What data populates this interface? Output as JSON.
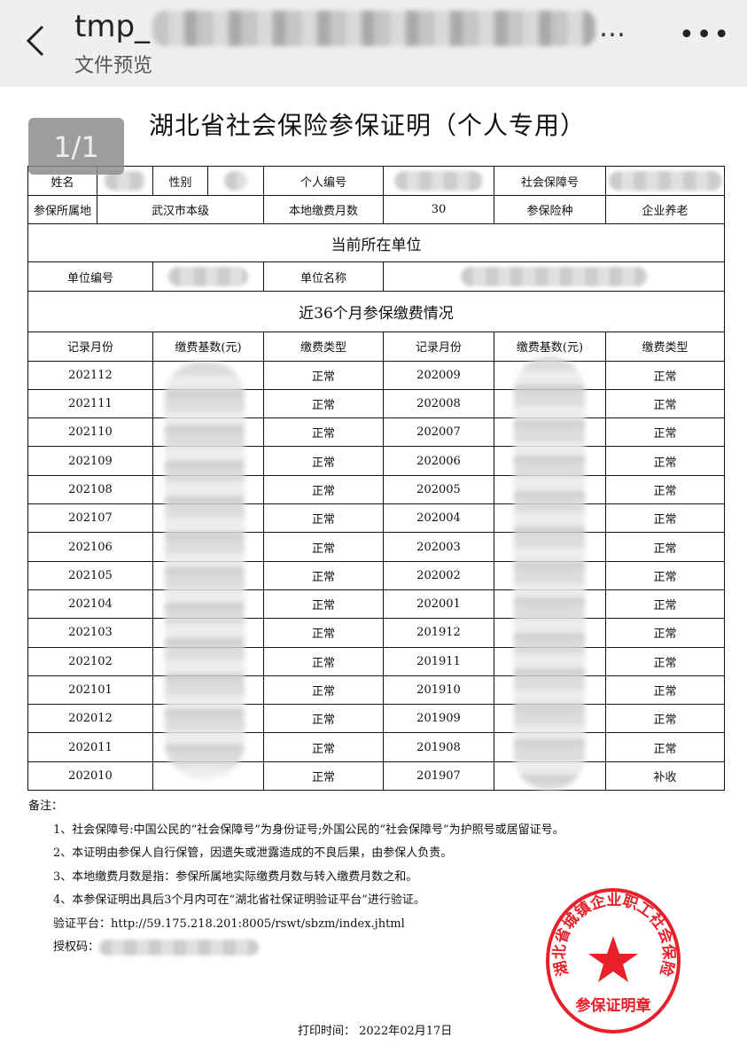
{
  "header": {
    "title": "tmp_",
    "title_ellipsis": "…",
    "subtitle": "文件预览",
    "back_icon": "chevron-left-icon",
    "more_icon": "more-icon"
  },
  "pager": "1/1",
  "doc": {
    "title": "湖北省社会保险参保证明（个人专用）",
    "info": {
      "name_label": "姓名",
      "gender_label": "性别",
      "personal_no_label": "个人编号",
      "ssn_label": "社会保障号",
      "region_label": "参保所属地",
      "region": "武汉市本级",
      "months_label": "本地缴费月数",
      "months": "30",
      "type_label": "参保险种",
      "type": "企业养老"
    },
    "unit_section": "当前所在单位",
    "unit": {
      "no_label": "单位编号",
      "name_label": "单位名称"
    },
    "record_section": "近36个月参保缴费情况",
    "columns": [
      "记录月份",
      "缴费基数(元)",
      "缴费类型",
      "记录月份",
      "缴费基数(元)",
      "缴费类型"
    ],
    "rows": [
      [
        "202112",
        "正常",
        "202009",
        "正常"
      ],
      [
        "202111",
        "正常",
        "202008",
        "正常"
      ],
      [
        "202110",
        "正常",
        "202007",
        "正常"
      ],
      [
        "202109",
        "正常",
        "202006",
        "正常"
      ],
      [
        "202108",
        "正常",
        "202005",
        "正常"
      ],
      [
        "202107",
        "正常",
        "202004",
        "正常"
      ],
      [
        "202106",
        "正常",
        "202003",
        "正常"
      ],
      [
        "202105",
        "正常",
        "202002",
        "正常"
      ],
      [
        "202104",
        "正常",
        "202001",
        "正常"
      ],
      [
        "202103",
        "正常",
        "201912",
        "正常"
      ],
      [
        "202102",
        "正常",
        "201911",
        "正常"
      ],
      [
        "202101",
        "正常",
        "201910",
        "正常"
      ],
      [
        "202012",
        "正常",
        "201909",
        "正常"
      ],
      [
        "202011",
        "正常",
        "201908",
        "正常"
      ],
      [
        "202010",
        "正常",
        "201907",
        "补收"
      ]
    ],
    "notes_title": "备注：",
    "notes": [
      "1、社会保障号:中国公民的“社会保障号”为身份证号;外国公民的“社会保障号”为护照号或居留证号。",
      "2、本证明由参保人自行保管，因遗失或泄露造成的不良后果，由参保人负责。",
      "3、本地缴费月数是指：参保所属地实际缴费月数与转入缴费月数之和。",
      "4、本参保证明出具后3个月内可在“湖北省社保证明验证平台”进行验证。"
    ],
    "verify": "验证平台：http://59.175.218.201:8005/rswt/sbzm/index.jhtml",
    "auth_label": "授权码：",
    "print_time": "打印时间：  2022年02月17日",
    "seal": {
      "ring_text": "湖北省城镇企业职工社会保险",
      "center_text": "参保证明章",
      "color": "#e8202a"
    }
  }
}
